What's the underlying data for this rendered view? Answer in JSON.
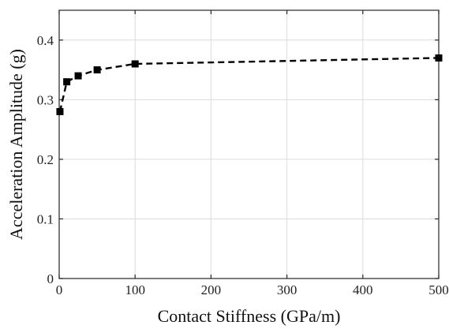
{
  "chart_data": {
    "type": "line",
    "title": "",
    "xlabel": "Contact Stiffness (GPa/m)",
    "ylabel": "Acceleration Amplitude (g)",
    "xlim": [
      0,
      500
    ],
    "ylim": [
      0,
      0.45
    ],
    "xticks": [
      0,
      100,
      200,
      300,
      400,
      500
    ],
    "xtick_labels": [
      "0",
      "100",
      "200",
      "300",
      "400",
      "500"
    ],
    "yticks": [
      0,
      0.1,
      0.2,
      0.3,
      0.4
    ],
    "ytick_labels": [
      "0",
      "0.1",
      "0.2",
      "0.3",
      "0.4"
    ],
    "grid": true,
    "legend": "none",
    "series": [
      {
        "x": [
          1,
          10,
          25,
          50,
          100,
          500
        ],
        "y": [
          0.28,
          0.33,
          0.34,
          0.35,
          0.36,
          0.37
        ],
        "line_style": "dashed",
        "marker": "square",
        "color": "#000000"
      }
    ]
  }
}
